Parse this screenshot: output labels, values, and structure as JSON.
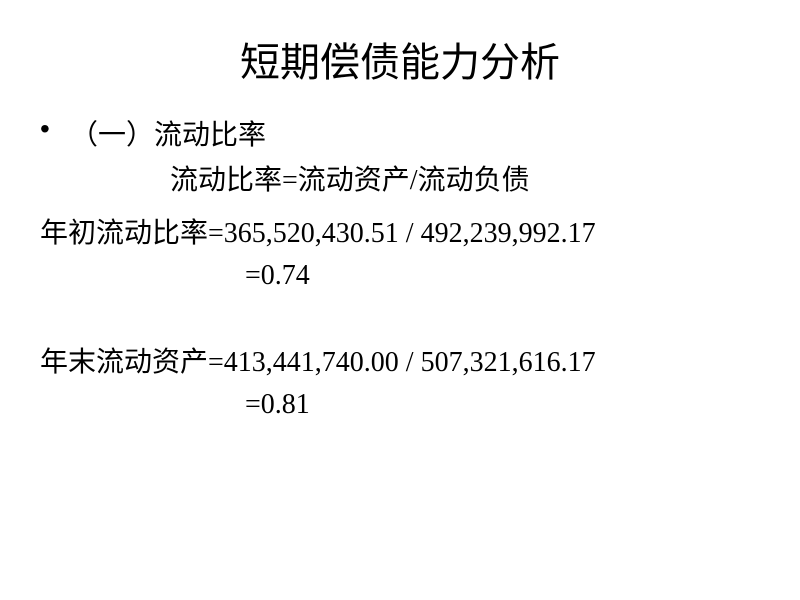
{
  "slide": {
    "title": "短期偿债能力分析",
    "bullet_marker": "•",
    "section_label": "（一）流动比率",
    "formula": "流动比率=流动资产/流动负债",
    "calc1": {
      "label": "年初流动比率=",
      "expression": " 365,520,430.51  / 492,239,992.17",
      "result": "=0.74"
    },
    "calc2": {
      "label": "年末流动资产=",
      "expression": " 413,441,740.00 / 507,321,616.17",
      "result": "=0.81"
    }
  },
  "style": {
    "background_color": "#ffffff",
    "text_color": "#000000",
    "title_fontsize": 40,
    "body_fontsize": 28,
    "font_family": "SimSun"
  }
}
